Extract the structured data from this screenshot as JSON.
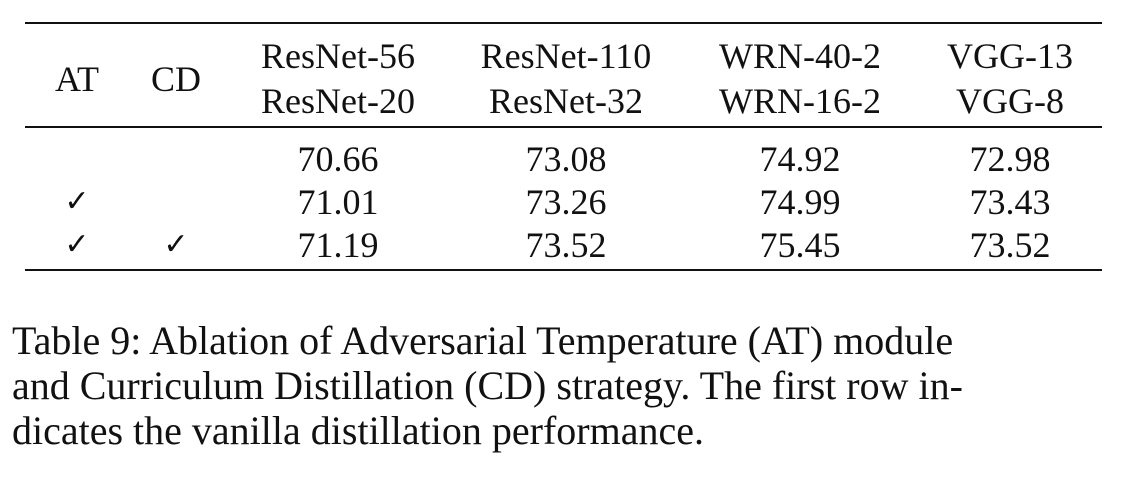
{
  "table": {
    "headers": {
      "at": "AT",
      "cd": "CD",
      "pairs": [
        {
          "teacher": "ResNet-56",
          "student": "ResNet-20"
        },
        {
          "teacher": "ResNet-110",
          "student": "ResNet-32"
        },
        {
          "teacher": "WRN-40-2",
          "student": "WRN-16-2"
        },
        {
          "teacher": "VGG-13",
          "student": "VGG-8"
        }
      ]
    },
    "rows": [
      {
        "at": "",
        "cd": "",
        "values": [
          "70.66",
          "73.08",
          "74.92",
          "72.98"
        ]
      },
      {
        "at": "✓",
        "cd": "",
        "values": [
          "71.01",
          "73.26",
          "74.99",
          "73.43"
        ]
      },
      {
        "at": "✓",
        "cd": "✓",
        "values": [
          "71.19",
          "73.52",
          "75.45",
          "73.52"
        ]
      }
    ]
  },
  "caption": {
    "lines": [
      "Table 9: Ablation of Adversarial Temperature (AT) module",
      "and Curriculum Distillation (CD) strategy. The first row in-",
      "dicates the vanilla distillation performance."
    ]
  }
}
